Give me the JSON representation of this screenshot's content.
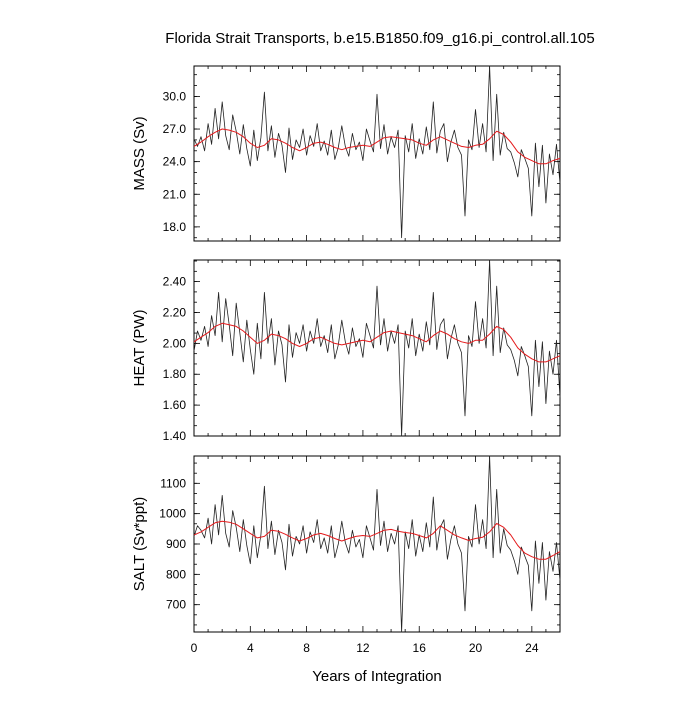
{
  "figure": {
    "title": "Florida Strait Transports, b.e15.B1850.f09_g16.pi_control.all.105",
    "xlabel": "Years of Integration"
  },
  "chart_data": [
    {
      "type": "line",
      "ylabel": "MASS (Sv)",
      "xlim": [
        0,
        26
      ],
      "ylim": [
        16.7,
        32.8
      ],
      "y_ticks": [
        "18.0",
        "21.0",
        "24.0",
        "27.0",
        "30.0"
      ],
      "x_ticks": [
        "0",
        "4",
        "8",
        "12",
        "16",
        "20",
        "24"
      ],
      "grid": false,
      "series": [
        {
          "color": "#222222",
          "x": [
            0.0,
            0.25,
            0.5,
            0.75,
            1.0,
            1.25,
            1.5,
            1.75,
            2.0,
            2.25,
            2.5,
            2.75,
            3.0,
            3.25,
            3.5,
            3.75,
            4.0,
            4.25,
            4.5,
            4.75,
            5.0,
            5.25,
            5.5,
            5.75,
            6.0,
            6.25,
            6.5,
            6.75,
            7.0,
            7.25,
            7.5,
            7.75,
            8.0,
            8.25,
            8.5,
            8.75,
            9.0,
            9.25,
            9.5,
            9.75,
            10.0,
            10.25,
            10.5,
            10.75,
            11.0,
            11.25,
            11.5,
            11.75,
            12.0,
            12.25,
            12.5,
            12.75,
            13.0,
            13.25,
            13.5,
            13.75,
            14.0,
            14.25,
            14.5,
            14.75,
            15.0,
            15.25,
            15.5,
            15.75,
            16.0,
            16.25,
            16.5,
            16.75,
            17.0,
            17.25,
            17.5,
            17.75,
            18.0,
            18.25,
            18.5,
            18.75,
            19.0,
            19.25,
            19.5,
            19.75,
            20.0,
            20.25,
            20.5,
            20.75,
            21.0,
            21.25,
            21.5,
            21.75,
            22.0,
            22.25,
            22.5,
            22.75,
            23.0,
            23.25,
            23.5,
            23.75,
            24.0,
            24.25,
            24.5,
            24.75,
            25.0,
            25.25,
            25.5,
            25.75,
            26.0
          ],
          "y": [
            26.1,
            25.4,
            26.3,
            25.0,
            27.5,
            25.6,
            28.9,
            26.1,
            29.5,
            26.4,
            25.1,
            28.3,
            26.8,
            24.7,
            27.4,
            25.2,
            23.6,
            26.9,
            24.1,
            26.2,
            30.4,
            25.0,
            27.3,
            24.4,
            26.6,
            25.5,
            23.0,
            27.1,
            24.2,
            26.0,
            25.3,
            27.0,
            24.6,
            26.4,
            25.4,
            27.5,
            25.0,
            25.9,
            24.6,
            26.9,
            24.2,
            25.3,
            27.3,
            25.4,
            24.5,
            26.6,
            25.1,
            25.8,
            24.1,
            27.0,
            25.9,
            24.9,
            30.2,
            25.2,
            27.4,
            24.7,
            26.3,
            25.3,
            26.9,
            17.0,
            26.4,
            24.9,
            27.5,
            24.3,
            26.1,
            24.7,
            27.2,
            25.1,
            29.5,
            24.8,
            26.8,
            27.5,
            24.0,
            25.8,
            26.9,
            25.3,
            24.6,
            19.0,
            26.0,
            25.1,
            28.8,
            25.3,
            27.5,
            24.9,
            32.8,
            24.1,
            30.2,
            24.6,
            26.7,
            25.2,
            24.9,
            23.9,
            22.6,
            25.1,
            24.3,
            23.4,
            19.0,
            25.7,
            21.7,
            25.5,
            20.2,
            24.7,
            22.8,
            25.6,
            22.0
          ]
        },
        {
          "color": "#e41a1c",
          "x": [
            0.0,
            0.5,
            1.0,
            1.5,
            2.0,
            2.5,
            3.0,
            3.5,
            4.0,
            4.5,
            5.0,
            5.5,
            6.0,
            6.5,
            7.0,
            7.5,
            8.0,
            8.5,
            9.0,
            9.5,
            10.0,
            10.5,
            11.0,
            11.5,
            12.0,
            12.5,
            13.0,
            13.5,
            14.0,
            14.5,
            15.0,
            15.5,
            16.0,
            16.5,
            17.0,
            17.5,
            18.0,
            18.5,
            19.0,
            19.5,
            20.0,
            20.5,
            21.0,
            21.5,
            22.0,
            22.5,
            23.0,
            23.5,
            24.0,
            24.5,
            25.0,
            25.5,
            26.0
          ],
          "y": [
            25.4,
            25.8,
            26.3,
            26.7,
            27.0,
            26.9,
            26.7,
            26.3,
            25.7,
            25.3,
            25.5,
            26.1,
            26.0,
            25.7,
            25.3,
            25.0,
            25.3,
            25.7,
            25.8,
            25.6,
            25.3,
            25.1,
            25.3,
            25.4,
            25.5,
            25.4,
            25.8,
            26.2,
            26.3,
            26.2,
            26.1,
            26.0,
            25.7,
            25.5,
            26.0,
            26.3,
            26.0,
            25.7,
            25.4,
            25.3,
            25.5,
            25.6,
            26.1,
            26.8,
            26.5,
            25.8,
            24.9,
            24.4,
            24.1,
            23.8,
            23.8,
            24.1,
            24.3
          ]
        }
      ]
    },
    {
      "type": "line",
      "ylabel": "HEAT (PW)",
      "xlim": [
        0,
        26
      ],
      "ylim": [
        1.4,
        2.54
      ],
      "y_ticks": [
        "1.40",
        "1.60",
        "1.80",
        "2.00",
        "2.20",
        "2.40"
      ],
      "x_ticks": [
        "0",
        "4",
        "8",
        "12",
        "16",
        "20",
        "24"
      ],
      "grid": false,
      "series": [
        {
          "color": "#222222",
          "x": [
            0.0,
            0.25,
            0.5,
            0.75,
            1.0,
            1.25,
            1.5,
            1.75,
            2.0,
            2.25,
            2.5,
            2.75,
            3.0,
            3.25,
            3.5,
            3.75,
            4.0,
            4.25,
            4.5,
            4.75,
            5.0,
            5.25,
            5.5,
            5.75,
            6.0,
            6.25,
            6.5,
            6.75,
            7.0,
            7.25,
            7.5,
            7.75,
            8.0,
            8.25,
            8.5,
            8.75,
            9.0,
            9.25,
            9.5,
            9.75,
            10.0,
            10.25,
            10.5,
            10.75,
            11.0,
            11.25,
            11.5,
            11.75,
            12.0,
            12.25,
            12.5,
            12.75,
            13.0,
            13.25,
            13.5,
            13.75,
            14.0,
            14.25,
            14.5,
            14.75,
            15.0,
            15.25,
            15.5,
            15.75,
            16.0,
            16.25,
            16.5,
            16.75,
            17.0,
            17.25,
            17.5,
            17.75,
            18.0,
            18.25,
            18.5,
            18.75,
            19.0,
            19.25,
            19.5,
            19.75,
            20.0,
            20.25,
            20.5,
            20.75,
            21.0,
            21.25,
            21.5,
            21.75,
            22.0,
            22.25,
            22.5,
            22.75,
            23.0,
            23.25,
            23.5,
            23.75,
            24.0,
            24.25,
            24.5,
            24.75,
            25.0,
            25.25,
            25.5,
            25.75,
            26.0
          ],
          "y": [
            1.95,
            2.08,
            2.02,
            2.11,
            1.98,
            2.18,
            2.05,
            2.33,
            2.01,
            2.29,
            2.12,
            1.92,
            2.26,
            2.07,
            1.88,
            2.15,
            1.96,
            1.8,
            2.13,
            1.9,
            2.33,
            2.0,
            2.16,
            1.86,
            2.08,
            1.99,
            1.75,
            2.12,
            1.91,
            2.07,
            2.0,
            2.12,
            1.95,
            2.08,
            2.0,
            2.16,
            1.98,
            2.05,
            1.94,
            2.12,
            1.9,
            1.99,
            2.15,
            2.01,
            1.93,
            2.1,
            1.98,
            2.03,
            1.91,
            2.13,
            2.05,
            1.97,
            2.37,
            1.99,
            2.16,
            1.95,
            2.08,
            2.0,
            2.12,
            1.4,
            2.08,
            1.97,
            2.16,
            1.92,
            2.06,
            1.95,
            2.14,
            1.99,
            2.33,
            1.96,
            2.12,
            2.16,
            1.9,
            2.03,
            2.12,
            2.0,
            1.94,
            1.53,
            2.05,
            1.98,
            2.27,
            2.0,
            2.16,
            1.97,
            2.54,
            1.92,
            2.37,
            1.94,
            2.1,
            1.99,
            1.96,
            1.89,
            1.79,
            1.98,
            1.92,
            1.85,
            1.53,
            2.02,
            1.72,
            2.01,
            1.61,
            1.95,
            1.8,
            2.02,
            1.65
          ]
        },
        {
          "color": "#e41a1c",
          "x": [
            0.0,
            0.5,
            1.0,
            1.5,
            2.0,
            2.5,
            3.0,
            3.5,
            4.0,
            4.5,
            5.0,
            5.5,
            6.0,
            6.5,
            7.0,
            7.5,
            8.0,
            8.5,
            9.0,
            9.5,
            10.0,
            10.5,
            11.0,
            11.5,
            12.0,
            12.5,
            13.0,
            13.5,
            14.0,
            14.5,
            15.0,
            15.5,
            16.0,
            16.5,
            17.0,
            17.5,
            18.0,
            18.5,
            19.0,
            19.5,
            20.0,
            20.5,
            21.0,
            21.5,
            22.0,
            22.5,
            23.0,
            23.5,
            24.0,
            24.5,
            25.0,
            25.5,
            26.0
          ],
          "y": [
            2.01,
            2.04,
            2.07,
            2.11,
            2.13,
            2.12,
            2.11,
            2.08,
            2.04,
            2.0,
            2.02,
            2.06,
            2.05,
            2.03,
            2.0,
            1.98,
            2.0,
            2.03,
            2.04,
            2.02,
            2.0,
            1.99,
            2.0,
            2.01,
            2.02,
            2.01,
            2.04,
            2.07,
            2.08,
            2.07,
            2.06,
            2.05,
            2.03,
            2.01,
            2.05,
            2.08,
            2.06,
            2.03,
            2.01,
            2.0,
            2.02,
            2.02,
            2.06,
            2.11,
            2.09,
            2.04,
            1.97,
            1.93,
            1.9,
            1.88,
            1.88,
            1.9,
            1.92
          ]
        }
      ]
    },
    {
      "type": "line",
      "ylabel": "SALT (Sv*ppt)",
      "xlim": [
        0,
        26
      ],
      "ylim": [
        610,
        1190
      ],
      "y_ticks": [
        "700",
        "800",
        "900",
        "1000",
        "1100"
      ],
      "x_ticks": [
        "0",
        "4",
        "8",
        "12",
        "16",
        "20",
        "24"
      ],
      "xlabel": "Years of Integration",
      "grid": false,
      "series": [
        {
          "color": "#222222",
          "x": [
            0.0,
            0.25,
            0.5,
            0.75,
            1.0,
            1.25,
            1.5,
            1.75,
            2.0,
            2.25,
            2.5,
            2.75,
            3.0,
            3.25,
            3.5,
            3.75,
            4.0,
            4.25,
            4.5,
            4.75,
            5.0,
            5.25,
            5.5,
            5.75,
            6.0,
            6.25,
            6.5,
            6.75,
            7.0,
            7.25,
            7.5,
            7.75,
            8.0,
            8.25,
            8.5,
            8.75,
            9.0,
            9.25,
            9.5,
            9.75,
            10.0,
            10.25,
            10.5,
            10.75,
            11.0,
            11.25,
            11.5,
            11.75,
            12.0,
            12.25,
            12.5,
            12.75,
            13.0,
            13.25,
            13.5,
            13.75,
            14.0,
            14.25,
            14.5,
            14.75,
            15.0,
            15.25,
            15.5,
            15.75,
            16.0,
            16.25,
            16.5,
            16.75,
            17.0,
            17.25,
            17.5,
            17.75,
            18.0,
            18.25,
            18.5,
            18.75,
            19.0,
            19.25,
            19.5,
            19.75,
            20.0,
            20.25,
            20.5,
            20.75,
            21.0,
            21.25,
            21.5,
            21.75,
            22.0,
            22.25,
            22.5,
            22.75,
            23.0,
            23.25,
            23.5,
            23.75,
            24.0,
            24.25,
            24.5,
            24.75,
            25.0,
            25.25,
            25.5,
            25.75,
            26.0
          ],
          "y": [
            925,
            960,
            945,
            920,
            985,
            900,
            1030,
            930,
            1060,
            935,
            890,
            1010,
            955,
            875,
            980,
            895,
            835,
            960,
            855,
            930,
            1090,
            885,
            975,
            865,
            945,
            905,
            815,
            965,
            860,
            925,
            900,
            960,
            870,
            940,
            905,
            980,
            885,
            920,
            870,
            960,
            855,
            900,
            975,
            905,
            870,
            945,
            890,
            915,
            855,
            960,
            920,
            880,
            1080,
            895,
            975,
            875,
            935,
            900,
            960,
            610,
            940,
            885,
            980,
            860,
            930,
            875,
            970,
            890,
            1055,
            880,
            955,
            980,
            850,
            915,
            960,
            900,
            870,
            680,
            925,
            890,
            1030,
            900,
            980,
            885,
            1190,
            855,
            1080,
            870,
            950,
            895,
            880,
            845,
            800,
            890,
            860,
            830,
            680,
            910,
            770,
            905,
            715,
            875,
            810,
            905,
            780
          ]
        },
        {
          "color": "#e41a1c",
          "x": [
            0.0,
            0.5,
            1.0,
            1.5,
            2.0,
            2.5,
            3.0,
            3.5,
            4.0,
            4.5,
            5.0,
            5.5,
            6.0,
            6.5,
            7.0,
            7.5,
            8.0,
            8.5,
            9.0,
            9.5,
            10.0,
            10.5,
            11.0,
            11.5,
            12.0,
            12.5,
            13.0,
            13.5,
            14.0,
            14.5,
            15.0,
            15.5,
            16.0,
            16.5,
            17.0,
            17.5,
            18.0,
            18.5,
            19.0,
            19.5,
            20.0,
            20.5,
            21.0,
            21.5,
            22.0,
            22.5,
            23.0,
            23.5,
            24.0,
            24.5,
            25.0,
            25.5,
            26.0
          ],
          "y": [
            930,
            940,
            955,
            970,
            975,
            972,
            965,
            950,
            935,
            920,
            925,
            945,
            942,
            932,
            920,
            910,
            918,
            930,
            935,
            928,
            918,
            910,
            918,
            925,
            928,
            925,
            935,
            945,
            948,
            942,
            938,
            935,
            928,
            920,
            935,
            960,
            945,
            930,
            920,
            912,
            918,
            922,
            940,
            968,
            955,
            930,
            895,
            870,
            858,
            850,
            850,
            862,
            875
          ]
        }
      ]
    }
  ]
}
